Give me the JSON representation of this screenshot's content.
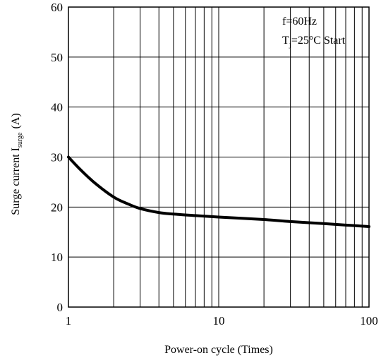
{
  "chart_data": {
    "type": "line",
    "title": "",
    "xlabel": "Power-on cycle (Times)",
    "ylabel_main": "Surge current I",
    "ylabel_sub": "surge",
    "ylabel_unit": "(A)",
    "xscale": "log",
    "xlim": [
      1,
      100
    ],
    "ylim": [
      0,
      60
    ],
    "grid": true,
    "x_ticks": [
      1,
      10,
      100
    ],
    "x_tick_labels": [
      "1",
      "10",
      "100"
    ],
    "y_ticks": [
      0,
      10,
      20,
      30,
      40,
      50,
      60
    ],
    "y_tick_labels": [
      "0",
      "10",
      "20",
      "30",
      "40",
      "50",
      "60"
    ],
    "annotations": {
      "freq": "f=60Hz",
      "tj_main": "T",
      "tj_sub": "j",
      "tj_rest": "=25°C Start"
    },
    "series": [
      {
        "x": [
          1,
          1.2,
          1.5,
          2,
          2.5,
          3,
          4,
          5,
          7,
          10,
          20,
          30,
          50,
          70,
          100
        ],
        "y": [
          30,
          27.5,
          24.8,
          22,
          20.6,
          19.7,
          18.9,
          18.6,
          18.3,
          18.0,
          17.5,
          17.1,
          16.7,
          16.4,
          16.1
        ]
      }
    ]
  }
}
